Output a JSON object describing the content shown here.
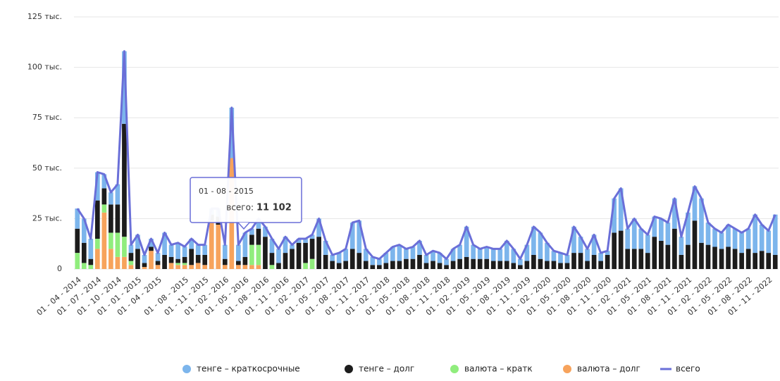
{
  "chart_data": {
    "type": "bar",
    "categories": [
      "01 - 04 - 2014",
      null,
      null,
      "01 - 07 - 2014",
      null,
      null,
      "01 - 10 - 2014",
      null,
      null,
      "01 - 01 - 2015",
      null,
      null,
      "01 - 04 - 2015",
      null,
      null,
      null,
      "01 - 08 - 2015",
      null,
      null,
      "01 - 11 - 2015",
      null,
      null,
      "01 - 02 - 2016",
      null,
      null,
      "01 - 05 - 2016",
      null,
      null,
      "01 - 08 - 2016",
      null,
      null,
      "01 - 11 - 2016",
      null,
      null,
      "01 - 02 - 2017",
      null,
      null,
      "01 - 05 - 2017",
      null,
      null,
      "01 - 08 - 2017",
      null,
      null,
      "01 - 11 - 2017",
      null,
      null,
      "01 - 02 - 2018",
      null,
      null,
      "01 - 05 - 2018",
      null,
      null,
      "01 - 08 - 2018",
      null,
      null,
      "01 - 11 - 2018",
      null,
      null,
      "01 - 02 - 2019",
      null,
      null,
      "01 - 05 - 2019",
      null,
      null,
      "01 - 08 - 2019",
      null,
      null,
      "01 - 11 - 2019",
      null,
      null,
      "01 - 02 - 2020",
      null,
      null,
      "01 - 05 - 2020",
      null,
      null,
      "01 - 08 - 2020",
      null,
      null,
      "01 - 11 - 2020",
      null,
      null,
      "01 - 02 - 2021",
      null,
      null,
      "01 - 05 - 2021",
      null,
      null,
      "01 - 08 - 2021",
      null,
      null,
      "01 - 11 - 2021",
      null,
      null,
      "01 - 02 - 2022",
      null,
      null,
      "01 - 05 - 2022",
      null,
      null,
      "01 - 08 - 2022",
      null,
      null,
      "01 - 11 - 2022",
      null
    ],
    "series": [
      {
        "name": "тенге – краткосрочные",
        "color": "#7cb5ec",
        "values": [
          10,
          12,
          10,
          14,
          7,
          6,
          10,
          36,
          4,
          7,
          4,
          4,
          4,
          11,
          6,
          8,
          5.1,
          5,
          5,
          5,
          3,
          4,
          7,
          25,
          8,
          12,
          3,
          5,
          5,
          7,
          7,
          8,
          2,
          2,
          2,
          2,
          9,
          7,
          3,
          5,
          6,
          13,
          16,
          6,
          4,
          3,
          5,
          7,
          8,
          5,
          6,
          7,
          4,
          5,
          5,
          3,
          6,
          7,
          15,
          7,
          5,
          6,
          6,
          6,
          10,
          7,
          3,
          8,
          14,
          13,
          9,
          5,
          5,
          4,
          13,
          8,
          6,
          10,
          4,
          2,
          17,
          21,
          10,
          15,
          10,
          9,
          10,
          11,
          11,
          15,
          9,
          16,
          17,
          22,
          11,
          9,
          8,
          11,
          10,
          10,
          10,
          19,
          13,
          11,
          20
        ]
      },
      {
        "name": "тенге – долг",
        "color": "#1c1c1c",
        "values": [
          12,
          10,
          3,
          19,
          8,
          14,
          14,
          56,
          4,
          10,
          2,
          2,
          2,
          7,
          3,
          2,
          3,
          8,
          4,
          5,
          3,
          4,
          3,
          0,
          2,
          4,
          5,
          8,
          16,
          6,
          3,
          8,
          10,
          13,
          10,
          10,
          16,
          7,
          4,
          3,
          4,
          10,
          8,
          4,
          2,
          2,
          3,
          4,
          4,
          5,
          5,
          7,
          3,
          4,
          3,
          2,
          4,
          5,
          6,
          5,
          5,
          5,
          4,
          4,
          4,
          3,
          2,
          4,
          7,
          5,
          4,
          4,
          3,
          3,
          8,
          8,
          4,
          7,
          4,
          7,
          18,
          19,
          10,
          10,
          10,
          8,
          16,
          14,
          12,
          20,
          7,
          12,
          24,
          13,
          12,
          11,
          10,
          11,
          10,
          8,
          10,
          8,
          9,
          8,
          7
        ]
      },
      {
        "name": "валюта – кратк",
        "color": "#90ed7d",
        "values": [
          8,
          3,
          2,
          5,
          4,
          8,
          12,
          10,
          2,
          0,
          0,
          0,
          0,
          0,
          0,
          1,
          1,
          0,
          0,
          0,
          0,
          0,
          0,
          0,
          0,
          0,
          10,
          10,
          0,
          2,
          0,
          0,
          0,
          0,
          3,
          5,
          0,
          0,
          0,
          0,
          0,
          0,
          0,
          0,
          0,
          0,
          0,
          0,
          0,
          0,
          0,
          0,
          0,
          0,
          0,
          0,
          0,
          0,
          0,
          0,
          0,
          0,
          0,
          0,
          0,
          0,
          0,
          0,
          0,
          0,
          0,
          0,
          0,
          0,
          0,
          0,
          0,
          0,
          0,
          0,
          0,
          0,
          0,
          0,
          0,
          0,
          0,
          0,
          0,
          0,
          0,
          0,
          0,
          0,
          0,
          0,
          0,
          0,
          0,
          0,
          0,
          0,
          0,
          0,
          0
        ]
      },
      {
        "name": "валюта – долг",
        "color": "#f7a35c",
        "values": [
          0,
          0,
          0,
          10,
          28,
          10,
          6,
          6,
          2,
          0,
          1,
          9,
          2,
          0,
          3,
          2,
          2,
          2,
          3,
          2,
          24,
          22,
          2,
          55,
          2,
          2,
          2,
          2,
          0,
          0,
          0,
          0,
          0,
          0,
          0,
          0,
          0,
          0,
          0,
          0,
          0,
          0,
          0,
          0,
          0,
          0,
          0,
          0,
          0,
          0,
          0,
          0,
          0,
          0,
          0,
          0,
          0,
          0,
          0,
          0,
          0,
          0,
          0,
          0,
          0,
          0,
          0,
          0,
          0,
          0,
          0,
          0,
          0,
          0,
          0,
          0,
          0,
          0,
          0,
          0,
          0,
          0,
          0,
          0,
          0,
          0,
          0,
          0,
          0,
          0,
          0,
          0,
          0,
          0,
          0,
          0,
          0,
          0,
          0,
          0,
          0,
          0,
          0,
          0,
          0
        ]
      },
      {
        "name": "всего",
        "color": "#6a6fd8",
        "type": "line",
        "values": [
          30,
          25,
          15,
          48,
          47,
          38,
          42,
          108,
          12,
          17,
          7,
          15,
          8,
          18,
          12,
          13,
          11.1,
          15,
          12,
          12,
          30,
          30,
          12,
          80,
          12,
          18,
          20,
          25,
          21,
          15,
          10,
          16,
          12,
          15,
          15,
          17,
          25,
          14,
          7,
          8,
          10,
          23,
          24,
          10,
          6,
          5,
          8,
          11,
          12,
          10,
          11,
          14,
          7,
          9,
          8,
          5,
          10,
          12,
          21,
          12,
          10,
          11,
          10,
          10,
          14,
          10,
          5,
          12,
          21,
          18,
          13,
          9,
          8,
          7,
          21,
          16,
          10,
          17,
          8,
          9,
          35,
          40,
          20,
          25,
          20,
          17,
          26,
          25,
          23,
          35,
          16,
          28,
          41,
          35,
          23,
          20,
          18,
          22,
          20,
          18,
          20,
          27,
          22,
          19,
          27
        ]
      }
    ],
    "ylim": [
      0,
      125
    ],
    "yticks": [
      0,
      {
        "value": 25,
        "label": "25 тыс."
      },
      {
        "value": 50,
        "label": "50 тыс."
      },
      {
        "value": 75,
        "label": "75 тыс."
      },
      {
        "value": 100,
        "label": "100 тыс."
      },
      {
        "value": 125,
        "label": "125 тыс."
      }
    ],
    "grid": true,
    "legend": "bottom",
    "tooltip": {
      "date": "01 - 08 - 2015",
      "label": "всего:",
      "value": "11 102"
    }
  }
}
